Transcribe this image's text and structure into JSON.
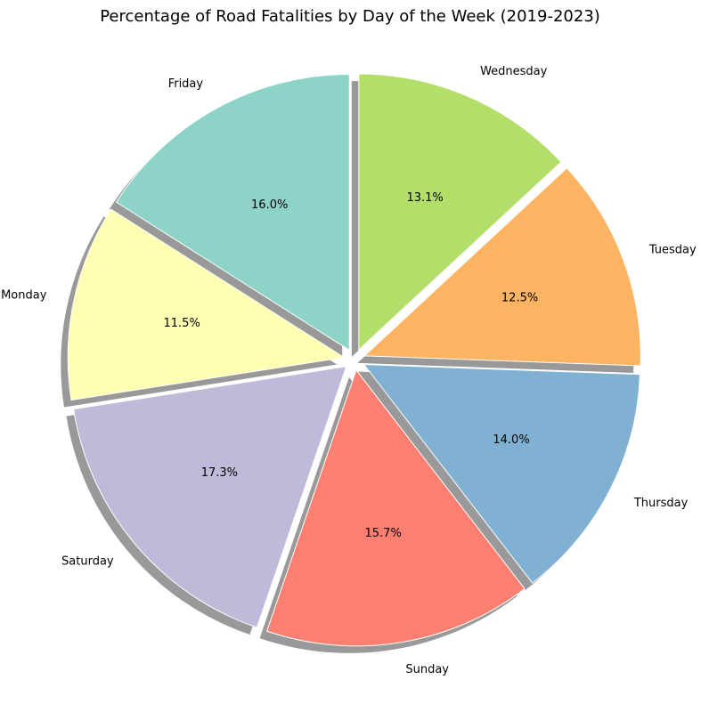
{
  "chart_data": {
    "type": "pie",
    "title": "Percentage of Road Fatalities by Day of the Week (2019-2023)",
    "categories": [
      "Friday",
      "Monday",
      "Saturday",
      "Sunday",
      "Thursday",
      "Tuesday",
      "Wednesday"
    ],
    "values": [
      16.0,
      11.5,
      17.3,
      15.7,
      14.0,
      12.5,
      13.1
    ],
    "percent_labels": [
      "16.0%",
      "11.5%",
      "17.3%",
      "15.7%",
      "14.0%",
      "12.5%",
      "13.1%"
    ],
    "colors": [
      "#8dd3c7",
      "#ffffb3",
      "#bebada",
      "#fb8072",
      "#80b1d3",
      "#fdb462",
      "#b3de69"
    ],
    "start_angle_deg": 90,
    "direction": "counterclockwise",
    "exploded": true,
    "shadow": true,
    "legend": "none"
  }
}
